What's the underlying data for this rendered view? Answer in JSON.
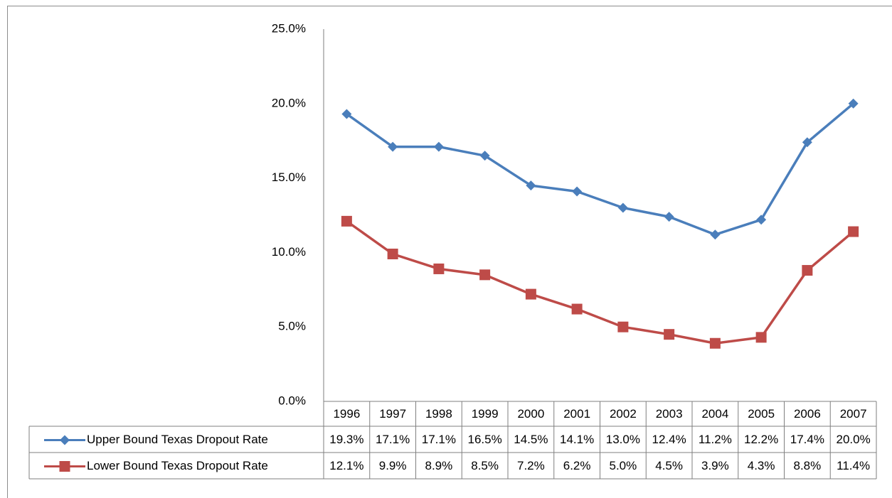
{
  "chart_data": {
    "type": "line",
    "categories": [
      "1996",
      "1997",
      "1998",
      "1999",
      "2000",
      "2001",
      "2002",
      "2003",
      "2004",
      "2005",
      "2006",
      "2007"
    ],
    "series": [
      {
        "name": "Upper Bound Texas Dropout Rate",
        "color": "#4a7ebb",
        "marker": "diamond",
        "values": [
          19.3,
          17.1,
          17.1,
          16.5,
          14.5,
          14.1,
          13.0,
          12.4,
          11.2,
          12.2,
          17.4,
          20.0
        ],
        "value_labels": [
          "19.3%",
          "17.1%",
          "17.1%",
          "16.5%",
          "14.5%",
          "14.1%",
          "13.0%",
          "12.4%",
          "11.2%",
          "12.2%",
          "17.4%",
          "20.0%"
        ]
      },
      {
        "name": "Lower Bound Texas Dropout Rate",
        "color": "#be4b48",
        "marker": "square",
        "values": [
          12.1,
          9.9,
          8.9,
          8.5,
          7.2,
          6.2,
          5.0,
          4.5,
          3.9,
          4.3,
          8.8,
          11.4
        ],
        "value_labels": [
          "12.1%",
          "9.9%",
          "8.9%",
          "8.5%",
          "7.2%",
          "6.2%",
          "5.0%",
          "4.5%",
          "3.9%",
          "4.3%",
          "8.8%",
          "11.4%"
        ]
      }
    ],
    "ylim": [
      0,
      25
    ],
    "yticks": [
      {
        "value": 0,
        "label": "0.0%"
      },
      {
        "value": 5,
        "label": "5.0%"
      },
      {
        "value": 10,
        "label": "10.0%"
      },
      {
        "value": 15,
        "label": "15.0%"
      },
      {
        "value": 20,
        "label": "20.0%"
      },
      {
        "value": 25,
        "label": "25.0%"
      }
    ],
    "grid": false
  }
}
